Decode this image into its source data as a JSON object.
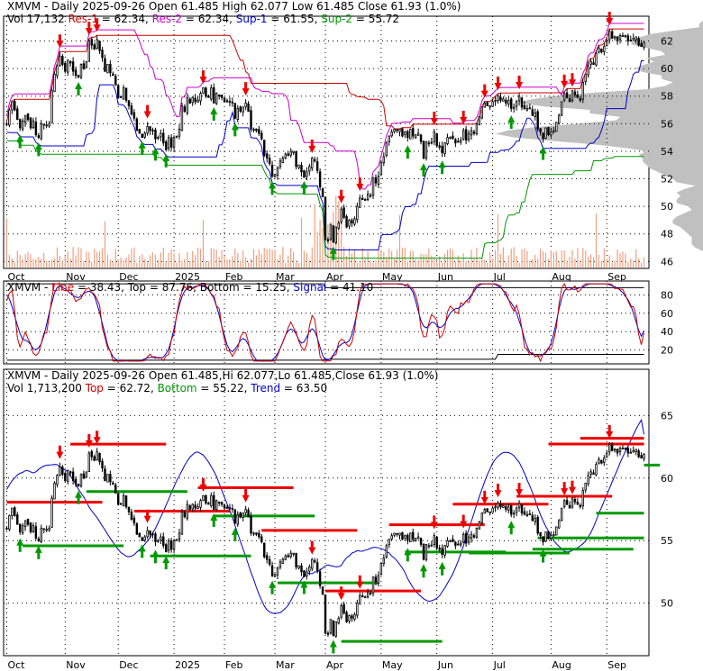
{
  "chart_data": [
    {
      "type": "candlestick",
      "panel": "price",
      "header": {
        "line1": [
          {
            "text": "XMVM - Daily 2025-09-26 Open 61.485  High 62.077  Low 61.485  Close 61.93 (1.0%)",
            "color": "#000000"
          }
        ],
        "line2": [
          {
            "text": "Vol 17,132 ",
            "color": "#000000"
          },
          {
            "text": "Res-1",
            "color": "#cc0000"
          },
          {
            "text": " = 62.34, ",
            "color": "#000000"
          },
          {
            "text": "Res-2",
            "color": "#cc00cc"
          },
          {
            "text": " = 62.34, ",
            "color": "#000000"
          },
          {
            "text": "Sup-1",
            "color": "#0000cc"
          },
          {
            "text": " = 61.55, ",
            "color": "#000000"
          },
          {
            "text": "Sup-2",
            "color": "#009900"
          },
          {
            "text": " = 55.72",
            "color": "#000000"
          }
        ]
      },
      "yticks": [
        46,
        48,
        50,
        52,
        54,
        56,
        58,
        60,
        62
      ],
      "ylim": [
        45.5,
        63.8
      ],
      "month_labels": [
        "Oct",
        "Nov",
        "Dec",
        "2025",
        "Feb",
        "Mar",
        "Apr",
        "May",
        "Jun",
        "Jul",
        "Aug",
        "Sep"
      ],
      "month_starts": [
        0,
        22,
        42,
        63,
        82,
        101,
        120,
        141,
        162,
        183,
        205,
        226
      ],
      "closes": [
        56.0,
        57.0,
        57.6,
        57.0,
        56.3,
        55.7,
        56.2,
        56.6,
        56.3,
        55.7,
        56.2,
        55.2,
        55.0,
        56.0,
        55.9,
        55.9,
        56.0,
        58.4,
        59.6,
        60.2,
        60.9,
        60.3,
        59.8,
        60.6,
        60.4,
        59.8,
        59.5,
        59.4,
        60.3,
        60.0,
        60.5,
        62.0,
        61.7,
        61.4,
        62.1,
        61.3,
        60.8,
        59.8,
        60.3,
        59.7,
        59.5,
        58.8,
        57.9,
        57.9,
        58.6,
        57.7,
        57.3,
        56.7,
        56.4,
        55.5,
        55.3,
        55.0,
        55.3,
        55.8,
        55.5,
        55.5,
        54.9,
        55.0,
        55.3,
        54.6,
        54.1,
        55.0,
        54.3,
        55.0,
        55.1,
        55.6,
        57.3,
        56.9,
        57.9,
        57.5,
        57.9,
        57.6,
        57.7,
        58.2,
        58.6,
        58.0,
        57.9,
        58.6,
        57.5,
        58.2,
        58.0,
        57.9,
        57.6,
        57.6,
        57.6,
        57.5,
        56.4,
        57.1,
        56.9,
        57.2,
        57.5,
        56.9,
        55.6,
        55.6,
        55.5,
        55.3,
        54.9,
        53.7,
        53.5,
        53.1,
        52.2,
        52.3,
        52.8,
        53.3,
        53.5,
        53.8,
        53.7,
        54.0,
        54.0,
        52.9,
        53.0,
        52.5,
        52.1,
        52.5,
        52.9,
        53.5,
        53.3,
        52.6,
        51.4,
        50.7,
        47.6,
        47.5,
        48.7,
        47.4,
        48.5,
        48.8,
        49.8,
        49.2,
        48.5,
        49.0,
        48.8,
        49.1,
        50.0,
        50.6,
        50.5,
        50.5,
        50.9,
        50.8,
        52.1,
        51.7,
        52.2,
        53.2,
        53.6,
        54.6,
        55.1,
        55.4,
        55.6,
        55.5,
        55.6,
        55.1,
        55.4,
        55.0,
        55.6,
        55.1,
        55.2,
        55.3,
        54.7,
        53.5,
        54.7,
        54.6,
        54.6,
        55.4,
        54.4,
        54.3,
        53.9,
        54.6,
        55.0,
        55.0,
        54.9,
        54.6,
        54.7,
        54.8,
        55.5,
        54.8,
        55.3,
        55.5,
        55.3,
        56.0,
        56.5,
        57.2,
        57.5,
        57.3,
        57.3,
        57.6,
        57.7,
        58.0,
        57.7,
        57.8,
        57.5,
        57.7,
        57.1,
        57.2,
        57.6,
        58.0,
        57.2,
        57.1,
        57.1,
        57.1,
        56.6,
        56.8,
        55.6,
        55.4,
        54.9,
        55.7,
        55.2,
        55.4,
        55.5,
        56.1,
        56.6,
        57.6,
        58.2,
        57.9,
        57.6,
        58.4,
        58.1,
        57.9,
        57.7,
        59.0,
        59.6,
        60.2,
        60.5,
        60.3,
        61.1,
        61.5,
        61.2,
        61.6,
        62.0,
        62.7,
        62.2,
        62.3,
        62.0,
        62.4,
        62.4,
        62.4,
        62.0,
        62.0,
        62.2,
        62.3,
        61.7,
        61.6,
        61.9
      ],
      "closes_note": "values digitized from the chart image; daily closes 2024-09-30 to 2025-09-26",
      "resistance_1": 62.34,
      "resistance_2": 62.34,
      "support_1": 61.55,
      "support_2": 55.72
    },
    {
      "type": "line",
      "panel": "oscillator",
      "header": [
        {
          "text": "XMVM - ",
          "color": "#000000"
        },
        {
          "text": "Line",
          "color": "#cc0000"
        },
        {
          "text": " = 38.43, ",
          "color": "#000000"
        },
        {
          "text": "Top",
          "color": "#000000"
        },
        {
          "text": " = 87.76, ",
          "color": "#000000"
        },
        {
          "text": "Bottom",
          "color": "#000000"
        },
        {
          "text": " = 15.25, ",
          "color": "#000000"
        },
        {
          "text": "Signal",
          "color": "#0000cc"
        },
        {
          "text": " = 41.10",
          "color": "#000000"
        }
      ],
      "yticks": [
        20,
        40,
        60,
        80
      ],
      "ylim": [
        5,
        95
      ],
      "line": 38.43,
      "top": 87.76,
      "bottom": 15.25,
      "signal": 41.1
    },
    {
      "type": "candlestick",
      "panel": "trend",
      "header": {
        "line1": [
          {
            "text": "XMVM - Daily 2025-09-26 Open 61.485,Hi 62.077,Lo 61.485,Close 61.93 (1.0%)",
            "color": "#000000"
          }
        ],
        "line2": [
          {
            "text": "Vol 1,713,200 ",
            "color": "#000000"
          },
          {
            "text": "Top",
            "color": "#cc0000"
          },
          {
            "text": " = 62.72, ",
            "color": "#000000"
          },
          {
            "text": "Bottom",
            "color": "#009900"
          },
          {
            "text": " = 55.22, ",
            "color": "#000000"
          },
          {
            "text": "Trend",
            "color": "#0000cc"
          },
          {
            "text": " = 63.50",
            "color": "#000000"
          }
        ]
      },
      "yticks": [
        50,
        55,
        60,
        65
      ],
      "ylim": [
        45.8,
        68.7
      ],
      "top": 62.72,
      "bottom": 55.22,
      "trend": 63.5
    }
  ]
}
